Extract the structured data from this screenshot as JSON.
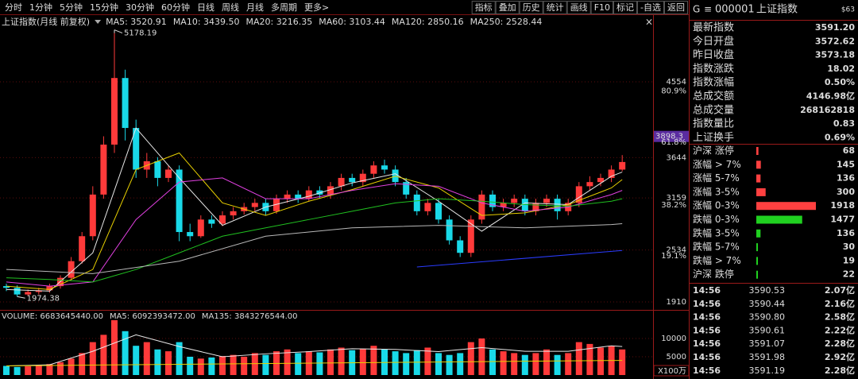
{
  "toolbar": {
    "periods": [
      "分时",
      "1分钟",
      "5分钟",
      "15分钟",
      "30分钟",
      "60分钟",
      "日线",
      "周线",
      "月线",
      "多周期",
      "更多>"
    ],
    "tools": [
      "指标",
      "叠加",
      "历史",
      "统计",
      "画线",
      "F10",
      "标记",
      "-自选",
      "返回"
    ]
  },
  "chart_title": "上证指数(月线 前复权)",
  "chart_data": [
    {
      "type": "candlestick",
      "up_color": "#ff3a3a",
      "down_color": "#19d9e8",
      "ylim": [
        1815,
        5327
      ],
      "yticks": [
        1910,
        2534,
        3159,
        3644,
        4554
      ],
      "cursor_price": 3898.3,
      "fib_levels": [
        {
          "value": 80.9,
          "label": "80.9%"
        },
        {
          "value": 61.8,
          "label": "61.8%"
        },
        {
          "value": 38.2,
          "label": "38.2%"
        },
        {
          "value": 19.1,
          "label": "19.1%"
        }
      ],
      "open": [
        2100,
        2080,
        2000,
        2030,
        2050,
        2100,
        2200,
        2400,
        2700,
        3200,
        3800,
        4600,
        4000,
        3500,
        3600,
        3400,
        3500,
        2750,
        2700,
        2900,
        2850,
        2950,
        3000,
        3050,
        3100,
        3000,
        3150,
        3200,
        3150,
        3250,
        3200,
        3300,
        3400,
        3350,
        3450,
        3550,
        3500,
        3350,
        3200,
        3000,
        3100,
        2900,
        2650,
        2500,
        2900,
        3200,
        3050,
        3100,
        3150,
        3000,
        3100,
        3150,
        3000,
        3100,
        3300,
        3350,
        3400,
        3500
      ],
      "high": [
        2130,
        2110,
        2060,
        2080,
        2130,
        2230,
        2450,
        2750,
        3300,
        3900,
        5178.19,
        4700,
        4100,
        3700,
        3650,
        3550,
        3550,
        2850,
        2950,
        2950,
        3000,
        3050,
        3100,
        3150,
        3150,
        3200,
        3250,
        3250,
        3300,
        3300,
        3350,
        3450,
        3450,
        3500,
        3600,
        3620,
        3550,
        3400,
        3250,
        3150,
        3150,
        2950,
        2700,
        2950,
        3250,
        3250,
        3150,
        3200,
        3200,
        3150,
        3200,
        3200,
        3150,
        3350,
        3420,
        3450,
        3550,
        3674
      ],
      "low": [
        2040,
        1974.38,
        1980,
        2000,
        2020,
        2070,
        2170,
        2370,
        2650,
        3150,
        3700,
        3850,
        3400,
        3400,
        3300,
        3350,
        2640,
        2640,
        2680,
        2800,
        2820,
        2900,
        2960,
        3000,
        2950,
        2970,
        3100,
        3100,
        3120,
        3150,
        3150,
        3250,
        3300,
        3300,
        3400,
        3450,
        3300,
        3150,
        2950,
        2950,
        2850,
        2600,
        2450,
        2450,
        2850,
        3000,
        3000,
        3050,
        2950,
        2950,
        3050,
        2900,
        2950,
        3050,
        3250,
        3300,
        3350,
        3480
      ],
      "close": [
        2080,
        2000,
        2030,
        2050,
        2100,
        2200,
        2400,
        2700,
        3200,
        3800,
        4600,
        4000,
        3500,
        3600,
        3400,
        3500,
        2750,
        2700,
        2900,
        2850,
        2950,
        3000,
        3050,
        3100,
        3000,
        3150,
        3200,
        3150,
        3250,
        3200,
        3300,
        3400,
        3350,
        3450,
        3550,
        3500,
        3350,
        3200,
        3000,
        3100,
        2900,
        2650,
        2500,
        2900,
        3200,
        3050,
        3100,
        3150,
        3000,
        3100,
        3150,
        3000,
        3100,
        3300,
        3350,
        3400,
        3500,
        3591
      ],
      "series": [
        {
          "name": "MA5: 3520.91",
          "color": "#e8e8e8",
          "x": [
            0,
            4,
            8,
            12,
            16,
            20,
            24,
            28,
            32,
            36,
            40,
            44,
            48,
            52,
            56,
            57
          ],
          "values": [
            2060,
            2040,
            2500,
            4000,
            3400,
            2830,
            3050,
            3180,
            3340,
            3450,
            3120,
            2760,
            3100,
            3080,
            3420,
            3470
          ]
        },
        {
          "name": "MA10: 3439.50",
          "color": "#e8d000",
          "x": [
            0,
            4,
            8,
            12,
            16,
            20,
            24,
            28,
            32,
            36,
            40,
            44,
            48,
            52,
            56,
            57
          ],
          "values": [
            2100,
            2060,
            2300,
            3500,
            3700,
            3100,
            2950,
            3120,
            3260,
            3420,
            3280,
            2950,
            2980,
            3080,
            3280,
            3380
          ]
        },
        {
          "name": "MA20: 3216.35",
          "color": "#e040e0",
          "x": [
            0,
            4,
            8,
            12,
            16,
            20,
            24,
            28,
            32,
            36,
            40,
            44,
            48,
            52,
            56,
            57
          ],
          "values": [
            2150,
            2100,
            2150,
            2900,
            3350,
            3400,
            3150,
            3150,
            3250,
            3330,
            3300,
            3100,
            3000,
            3050,
            3200,
            3250
          ]
        },
        {
          "name": "MA60: 3103.44",
          "color": "#20c020",
          "x": [
            0,
            4,
            8,
            12,
            16,
            20,
            24,
            28,
            32,
            36,
            40,
            44,
            48,
            52,
            56,
            57
          ],
          "values": [
            2200,
            2180,
            2150,
            2300,
            2500,
            2700,
            2800,
            2900,
            3000,
            3100,
            3150,
            3120,
            3080,
            3060,
            3120,
            3150
          ]
        },
        {
          "name": "MA120: 2850.16",
          "color": "#b8b8b8",
          "x": [
            0,
            8,
            16,
            24,
            32,
            40,
            48,
            56,
            57
          ],
          "values": [
            2300,
            2250,
            2400,
            2700,
            2800,
            2830,
            2800,
            2840,
            2850.16
          ]
        },
        {
          "name": "MA250: 2528.44",
          "color": "#2a3cff",
          "x": [
            38,
            57
          ],
          "values": [
            2330,
            2528
          ]
        }
      ]
    },
    {
      "type": "bar",
      "title": "VOLUME: 6683645440.00",
      "ylim": [
        0,
        16300
      ],
      "yticks": [
        5000,
        10000
      ],
      "unit_label": "X100万",
      "values": [
        2500,
        2200,
        2400,
        2600,
        3000,
        3500,
        4500,
        6000,
        9000,
        11000,
        15000,
        12000,
        8000,
        9000,
        7000,
        6500,
        9000,
        5000,
        4500,
        4800,
        5200,
        5500,
        5000,
        6000,
        5500,
        6500,
        7000,
        6000,
        6500,
        6200,
        7000,
        7500,
        6800,
        7200,
        8000,
        7000,
        6500,
        6000,
        6800,
        7500,
        6000,
        5500,
        6000,
        9000,
        10000,
        7000,
        6500,
        6000,
        5500,
        6000,
        7000,
        5500,
        6000,
        9000,
        8500,
        7500,
        8000,
        7000
      ],
      "series": [
        {
          "name": "MA5: 6092393472.00",
          "color": "#e8e8e8",
          "x": [
            0,
            4,
            8,
            12,
            16,
            20,
            24,
            28,
            32,
            36,
            40,
            44,
            48,
            52,
            56,
            57
          ],
          "values": [
            2500,
            2800,
            6500,
            11000,
            7800,
            5000,
            5800,
            6400,
            7200,
            7000,
            6400,
            7500,
            6500,
            6500,
            8000,
            7800
          ]
        },
        {
          "name": "MA135: 3843276544.00",
          "color": "#e8d000",
          "x": [
            0,
            57
          ],
          "values": [
            2500,
            4000
          ]
        }
      ]
    }
  ],
  "quote_panel": {
    "market": "G",
    "code": "000001",
    "name": "上证指数",
    "badge": "$63",
    "rows": [
      {
        "label": "最新指数",
        "value": "3591.20",
        "color": "#ff4040"
      },
      {
        "label": "今日开盘",
        "value": "3572.62",
        "color": "#20d020"
      },
      {
        "label": "昨日收盘",
        "value": "3573.18",
        "color": "#ffffff"
      },
      {
        "label": "指数涨跌",
        "value": "18.02",
        "color": "#ff4040"
      },
      {
        "label": "指数涨幅",
        "value": "0.50%",
        "color": "#ff4040"
      },
      {
        "label": "总成交额",
        "value": "4146.98亿",
        "color": "#e8d000"
      },
      {
        "label": "总成交量",
        "value": "268162818",
        "color": "#e8d000"
      },
      {
        "label": "指数量比",
        "value": "0.83",
        "color": "#20d020"
      },
      {
        "label": "上证换手",
        "value": "0.69%",
        "color": "#ffffff"
      }
    ],
    "breadth": [
      {
        "label": "沪深 涨停",
        "count": 68,
        "color": "#ff4040"
      },
      {
        "label": "涨幅 > 7%",
        "count": 145,
        "color": "#ff4040"
      },
      {
        "label": "涨幅 5-7%",
        "count": 136,
        "color": "#ff4040"
      },
      {
        "label": "涨幅 3-5%",
        "count": 300,
        "color": "#ff4040"
      },
      {
        "label": "涨幅 0-3%",
        "count": 1918,
        "color": "#ff4040"
      },
      {
        "label": "跌幅 0-3%",
        "count": 1477,
        "color": "#20d020"
      },
      {
        "label": "跌幅 3-5%",
        "count": 136,
        "color": "#20d020"
      },
      {
        "label": "跌幅 5-7%",
        "count": 30,
        "color": "#20d020"
      },
      {
        "label": "跌幅 > 7%",
        "count": 19,
        "color": "#20d020"
      },
      {
        "label": "沪深 跌停",
        "count": 22,
        "color": "#20d020"
      }
    ],
    "trades": [
      {
        "time": "14:56",
        "price": "3590.53",
        "amount": "2.07亿"
      },
      {
        "time": "14:56",
        "price": "3590.44",
        "amount": "2.16亿"
      },
      {
        "time": "14:56",
        "price": "3590.80",
        "amount": "2.58亿"
      },
      {
        "time": "14:56",
        "price": "3590.61",
        "amount": "2.22亿"
      },
      {
        "time": "14:56",
        "price": "3591.07",
        "amount": "2.28亿"
      },
      {
        "time": "14:56",
        "price": "3591.98",
        "amount": "2.92亿"
      },
      {
        "time": "14:56",
        "price": "3591.19",
        "amount": "2.28亿"
      }
    ]
  }
}
